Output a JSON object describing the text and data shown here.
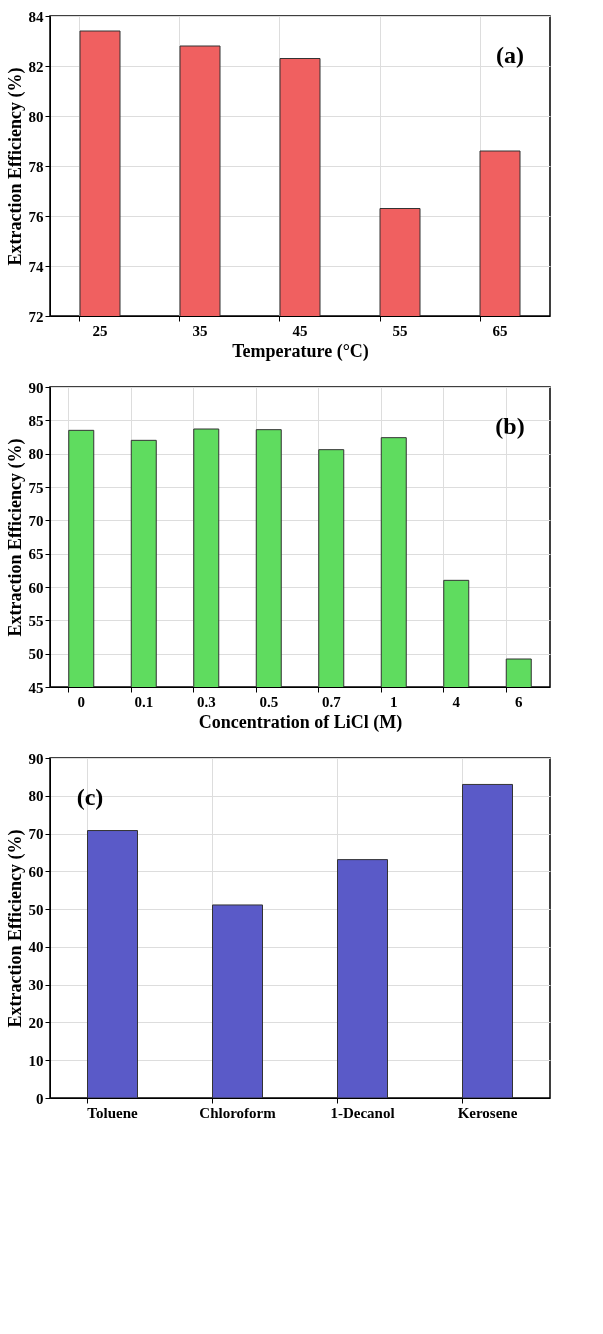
{
  "chart_data": [
    {
      "type": "bar",
      "categories": [
        "25",
        "35",
        "45",
        "55",
        "65"
      ],
      "values": [
        83.4,
        82.8,
        82.3,
        76.3,
        78.6
      ],
      "color": "#f06060",
      "xlabel": "Temperature (°C)",
      "ylabel": "Extraction Efficiency (%)",
      "ylim": [
        72,
        84
      ],
      "yticks": [
        72,
        74,
        76,
        78,
        80,
        82,
        84
      ],
      "grid": true,
      "annotations": [
        "(a)"
      ]
    },
    {
      "type": "bar",
      "categories": [
        "0",
        "0.1",
        "0.3",
        "0.5",
        "0.7",
        "1",
        "4",
        "6"
      ],
      "values": [
        83.5,
        82.0,
        83.7,
        83.6,
        80.6,
        82.4,
        61.0,
        49.2
      ],
      "color": "#5fdc5f",
      "xlabel": "Concentration of LiCl (M)",
      "ylabel": "Extraction Efficiency (%)",
      "ylim": [
        45,
        90
      ],
      "yticks": [
        45,
        50,
        55,
        60,
        65,
        70,
        75,
        80,
        85,
        90
      ],
      "grid": true,
      "annotations": [
        "(b)"
      ]
    },
    {
      "type": "bar",
      "categories": [
        "Toluene",
        "Chloroform",
        "1-Decanol",
        "Kerosene"
      ],
      "values": [
        70.8,
        51.1,
        63.1,
        83.0
      ],
      "color": "#5a5ac8",
      "ylabel": "Extraction Efficiency (%)",
      "ylim": [
        0,
        90
      ],
      "yticks": [
        0,
        10,
        20,
        30,
        40,
        50,
        60,
        70,
        80,
        90
      ],
      "grid": true,
      "annotations": [
        "(c)"
      ]
    }
  ]
}
